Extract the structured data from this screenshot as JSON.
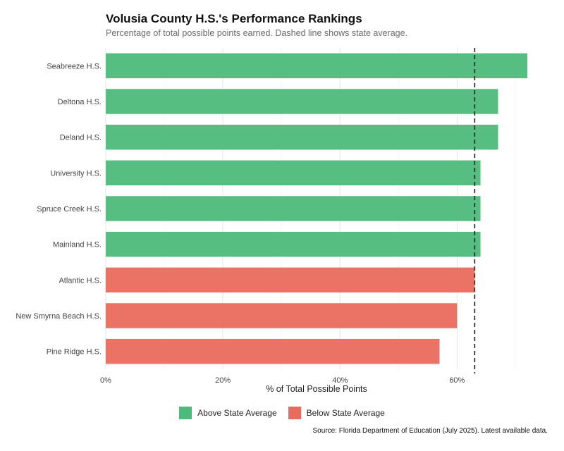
{
  "chart_data": {
    "type": "bar",
    "orientation": "horizontal",
    "title": "Volusia County H.S.'s Performance Rankings",
    "subtitle": "Percentage of total possible points earned. Dashed line shows state average.",
    "xlabel": "% of Total Possible Points",
    "ylabel": "",
    "xlim": [
      0,
      72
    ],
    "xticks": [
      0,
      20,
      40,
      60
    ],
    "xtick_labels": [
      "0%",
      "20%",
      "40%",
      "60%"
    ],
    "grid": true,
    "reference_line": {
      "value": 63,
      "style": "dashed"
    },
    "categories": [
      "Seabreeze H.S.",
      "Deltona H.S.",
      "Deland H.S.",
      "University H.S.",
      "Spruce Creek H.S.",
      "Mainland H.S.",
      "Atlantic H.S.",
      "New Smyrna Beach H.S.",
      "Pine Ridge H.S."
    ],
    "values": [
      72,
      67,
      67,
      64,
      64,
      64,
      63,
      60,
      57
    ],
    "groups": [
      "Above State Average",
      "Above State Average",
      "Above State Average",
      "Above State Average",
      "Above State Average",
      "Above State Average",
      "Below State Average",
      "Below State Average",
      "Below State Average"
    ],
    "legend": {
      "placement": "bottom",
      "entries": [
        {
          "label": "Above State Average",
          "color": "#4dbb7a"
        },
        {
          "label": "Below State Average",
          "color": "#ea6b5d"
        }
      ]
    },
    "source": "Source: Florida Department of Education (July 2025). Latest available data."
  }
}
